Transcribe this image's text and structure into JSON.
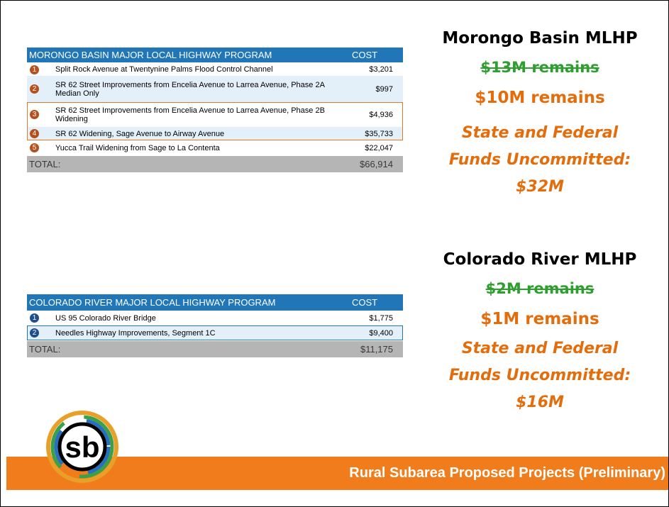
{
  "tables": [
    {
      "header": [
        "MORONGO BASIN MAJOR LOCAL HIGHWAY PROGRAM",
        "COST"
      ],
      "rows": [
        {
          "num": "1",
          "name": "Split Rock Avenue at Twentynine Palms Flood Control Channel",
          "cost": "$3,201"
        },
        {
          "num": "2",
          "name": "SR 62 Street Improvements from Encelia Avenue to Larrea Avenue, Phase 2A Median Only",
          "cost": "$997"
        },
        {
          "num": "3",
          "name": "SR 62 Street Improvements from Encelia Avenue to Larrea Avenue, Phase 2B Widening",
          "cost": "$4,936"
        },
        {
          "num": "4",
          "name": "SR 62 Widening, Sage Avenue to Airway Avenue",
          "cost": "$35,733"
        },
        {
          "num": "5",
          "name": "Yucca Trail Widening from Sage to La Contenta",
          "cost": "$22,047"
        }
      ],
      "total": [
        "TOTAL:",
        "$66,914"
      ]
    },
    {
      "header": [
        "COLORADO RIVER MAJOR LOCAL HIGHWAY PROGRAM",
        "COST"
      ],
      "rows": [
        {
          "num": "1",
          "name": "US 95 Colorado River Bridge",
          "cost": "$1,775"
        },
        {
          "num": "2",
          "name": "Needles Highway Improvements, Segment 1C",
          "cost": "$9,400"
        }
      ],
      "total": [
        "TOTAL:",
        "$11,175"
      ]
    }
  ],
  "summaries": [
    {
      "title": "Morongo Basin MLHP",
      "old": "$13M remains",
      "current": "$10M remains",
      "note": [
        "State and Federal",
        "Funds Uncommitted:",
        "$32M"
      ]
    },
    {
      "title": "Colorado River MLHP",
      "old": "$2M remains",
      "current": "$1M remains",
      "note": [
        "State and Federal",
        "Funds Uncommitted:",
        "$16M"
      ]
    }
  ],
  "logo": "sb",
  "footer": "Rural Subarea Proposed Projects (Preliminary)"
}
